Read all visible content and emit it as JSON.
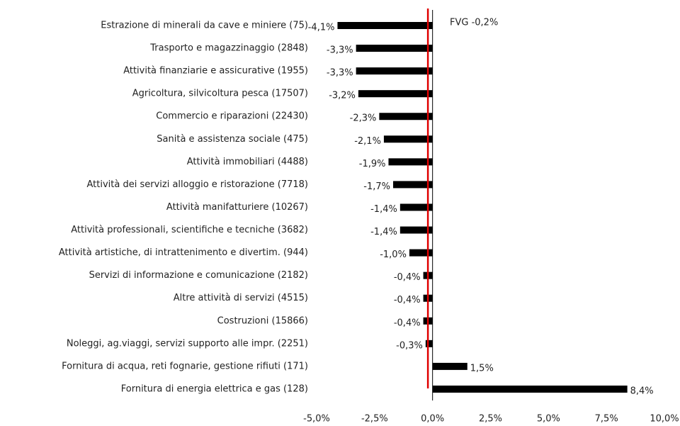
{
  "chart_data": {
    "type": "barh",
    "categories": [
      "Estrazione di minerali da cave e miniere (75)",
      "Trasporto e magazzinaggio (2848)",
      "Attività finanziarie e assicurative (1955)",
      "Agricoltura, silvicoltura pesca (17507)",
      "Commercio e riparazioni (22430)",
      "Sanità e assistenza sociale (475)",
      "Attività immobiliari (4488)",
      "Attività dei servizi alloggio e ristorazione (7718)",
      "Attività manifatturiere (10267)",
      "Attività professionali, scientifiche e tecniche (3682)",
      "Attività artistiche, di intrattenimento e divertim. (944)",
      "Servizi di informazione e comunicazione (2182)",
      "Altre attività di servizi (4515)",
      "Costruzioni (15866)",
      "Noleggi, ag.viaggi, servizi supporto alle impr. (2251)",
      "Fornitura di acqua, reti fognarie, gestione rifiuti (171)",
      "Fornitura di energia elettrica e gas (128)"
    ],
    "values": [
      -4.1,
      -3.3,
      -3.3,
      -3.2,
      -2.3,
      -2.1,
      -1.9,
      -1.7,
      -1.4,
      -1.4,
      -1.0,
      -0.4,
      -0.4,
      -0.4,
      -0.3,
      1.5,
      8.4
    ],
    "value_labels": [
      "-4,1%",
      "-3,3%",
      "-3,3%",
      "-3,2%",
      "-2,3%",
      "-2,1%",
      "-1,9%",
      "-1,7%",
      "-1,4%",
      "-1,4%",
      "-1,0%",
      "-0,4%",
      "-0,4%",
      "-0,4%",
      "-0,3%",
      "1,5%",
      "8,4%"
    ],
    "color": "#000000",
    "xlim": [
      -5,
      10
    ],
    "xticks": [
      {
        "value": -5,
        "label": "-5,0%"
      },
      {
        "value": -2.5,
        "label": "-2,5%"
      },
      {
        "value": 0,
        "label": "0,0%"
      },
      {
        "value": 2.5,
        "label": "2,5%"
      },
      {
        "value": 5,
        "label": "5,0%"
      },
      {
        "value": 7.5,
        "label": "7,5%"
      },
      {
        "value": 10,
        "label": "10,0%"
      }
    ],
    "reference_line": {
      "value": -0.2,
      "color": "#e00000",
      "label": "FVG -0,2%"
    },
    "grid": false
  }
}
